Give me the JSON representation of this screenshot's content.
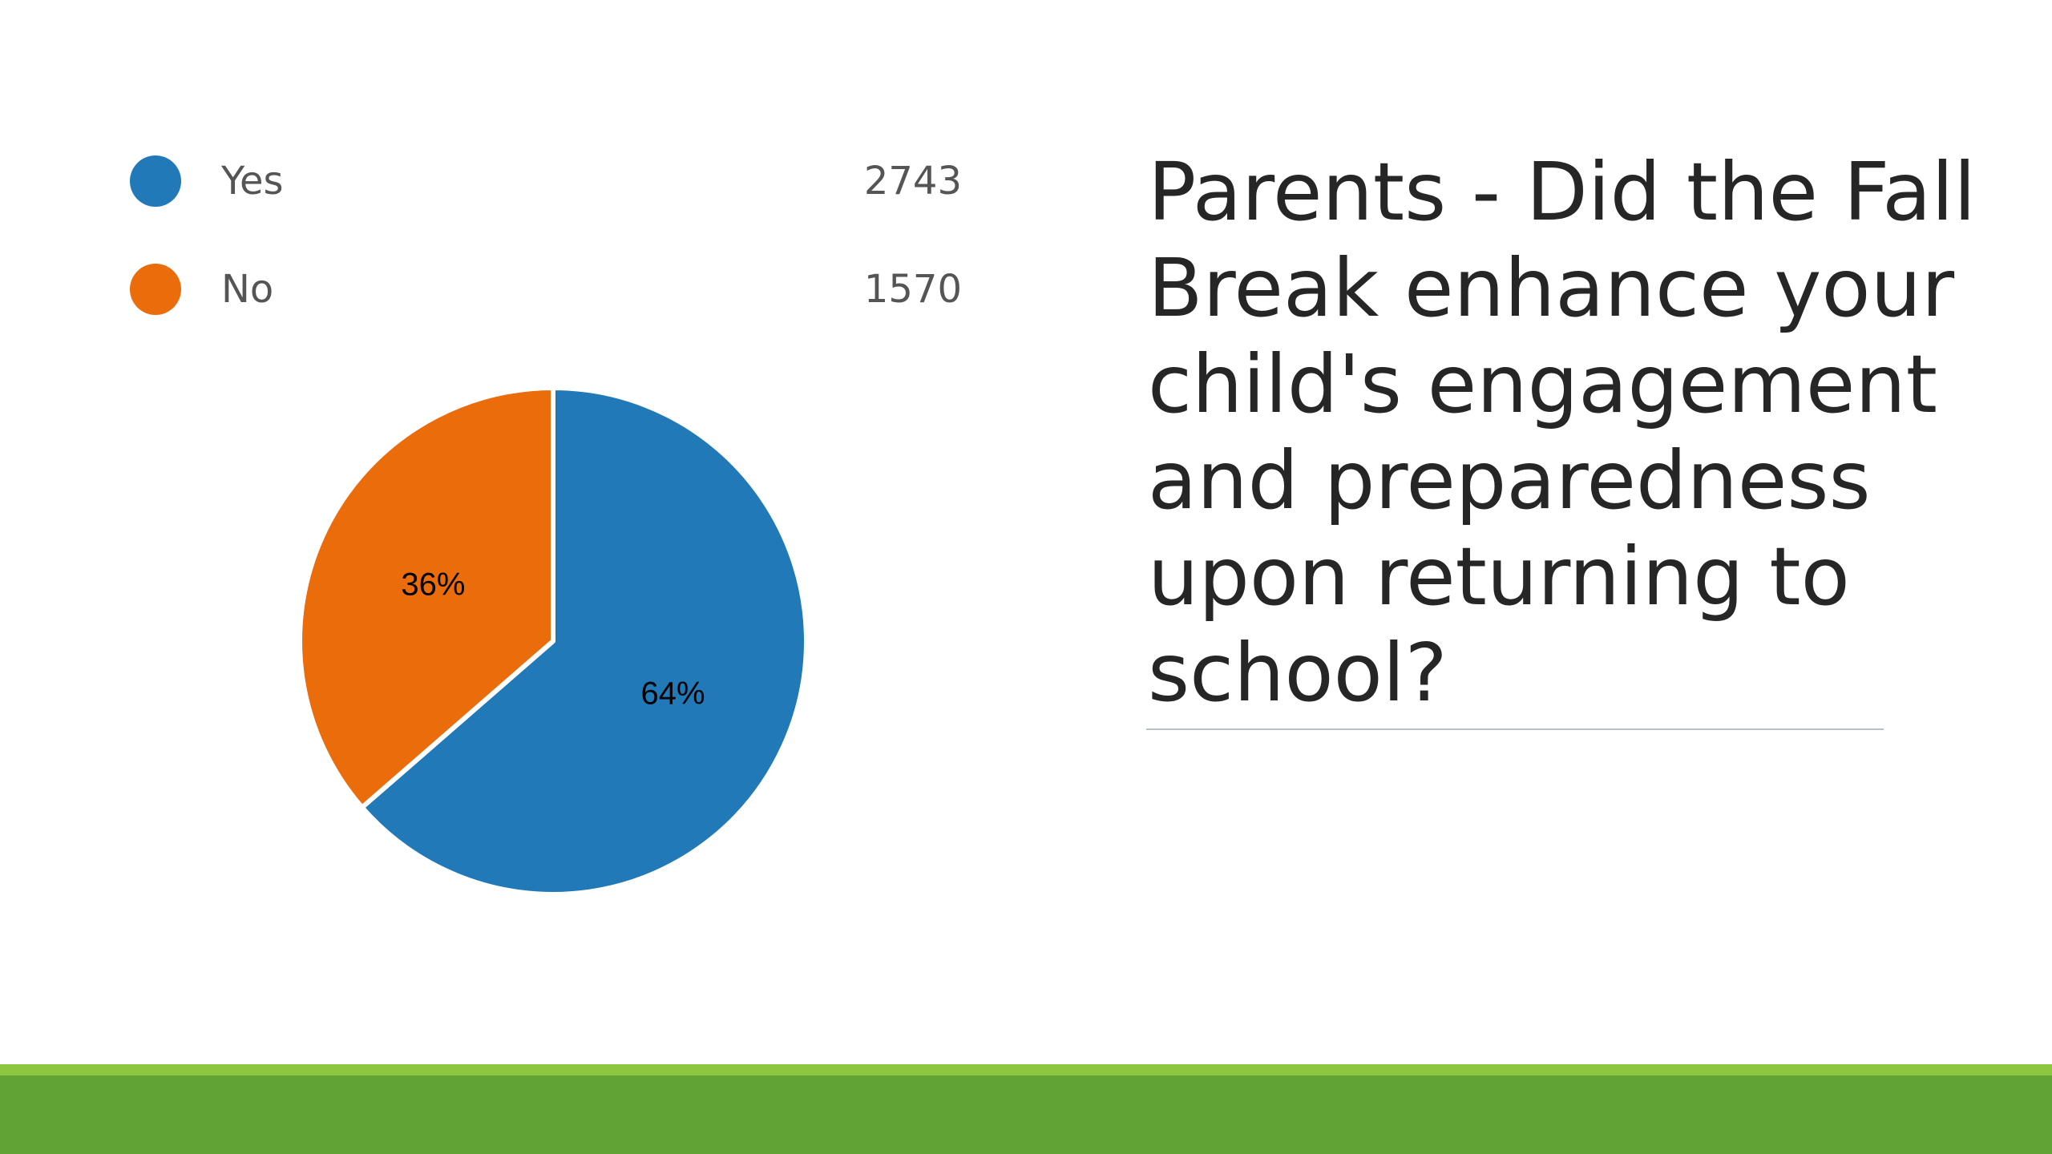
{
  "colors": {
    "yes": "#2179b8",
    "no": "#ea6c0a",
    "footer_band": "#62a335",
    "footer_accent": "#8dc63f",
    "title_rule": "#b9c3c7"
  },
  "slide": {
    "title": "Parents - Did the Fall Break enhance your child's engagement and preparedness upon returning to school?"
  },
  "legend": {
    "items": [
      {
        "label": "Yes",
        "count": "2743"
      },
      {
        "label": "No",
        "count": "1570"
      }
    ]
  },
  "chart_data": {
    "type": "pie",
    "title": "",
    "categories": [
      "Yes",
      "No"
    ],
    "values": [
      2743,
      1570
    ],
    "percent_labels": [
      "64%",
      "36%"
    ],
    "legend_position": "top"
  }
}
